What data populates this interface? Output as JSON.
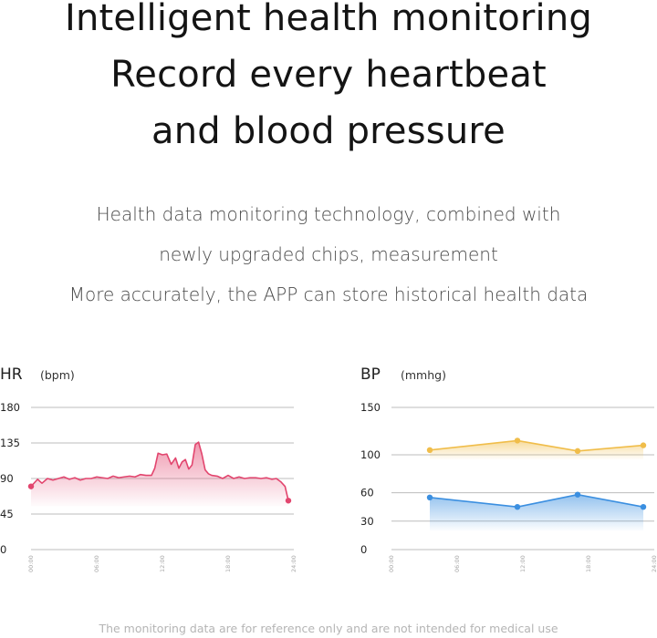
{
  "headline": {
    "line1": "Intelligent health monitoring",
    "line2": "Record every heartbeat",
    "line3": "and blood pressure"
  },
  "description": {
    "line1": "Health data monitoring technology, combined with",
    "line2": "newly upgraded chips, measurement",
    "line3": "More accurately, the APP can store historical health data"
  },
  "chart_data": [
    {
      "type": "area",
      "label": "HR",
      "unit": "(bpm)",
      "ylim": [
        0,
        180
      ],
      "yticks": [
        0,
        45,
        90,
        135,
        180
      ],
      "xticks": [
        "00:00",
        "06:00",
        "12:00",
        "18:00",
        "24:00"
      ],
      "xlim": [
        0,
        24
      ],
      "grid": true,
      "color": "#e2456e",
      "series": [
        {
          "x": [
            0,
            0.6,
            1.0,
            1.5,
            2.0,
            2.5,
            3.0,
            3.5,
            4.0,
            4.5,
            5.0,
            5.5,
            6.0,
            6.5,
            7.0,
            7.5,
            8.0,
            8.5,
            9.0,
            9.5,
            10.0,
            10.5,
            11.0,
            11.3,
            11.6,
            12.0,
            12.4,
            12.8,
            13.2,
            13.5,
            13.8,
            14.1,
            14.4,
            14.7,
            15.0,
            15.3,
            15.6,
            15.9,
            16.2,
            16.5,
            17.0,
            17.5,
            18.0,
            18.5,
            19.0,
            19.5,
            20.0,
            20.5,
            21.0,
            21.5,
            22.0,
            22.4,
            22.8,
            23.2,
            23.5
          ],
          "values": [
            80,
            89,
            84,
            90,
            88,
            90,
            92,
            89,
            91,
            88,
            90,
            90,
            92,
            91,
            90,
            93,
            91,
            92,
            93,
            92,
            95,
            94,
            94,
            103,
            122,
            120,
            121,
            108,
            116,
            103,
            111,
            114,
            102,
            107,
            133,
            136,
            121,
            101,
            96,
            94,
            93,
            90,
            94,
            90,
            92,
            90,
            91,
            91,
            90,
            91,
            89,
            90,
            86,
            80,
            62
          ]
        }
      ]
    },
    {
      "type": "area",
      "label": "BP",
      "unit": "(mmhg)",
      "ylim": [
        0,
        150
      ],
      "yticks": [
        0,
        30,
        60,
        100,
        150
      ],
      "xticks": [
        "00:00",
        "06:00",
        "12:00",
        "18:00",
        "24:00"
      ],
      "xlim": [
        0,
        24
      ],
      "grid": true,
      "series": [
        {
          "color": "#f0bd4a",
          "x": [
            3.5,
            11.5,
            17.0,
            23.0
          ],
          "values": [
            105,
            115,
            104,
            110
          ]
        },
        {
          "color": "#3b8fe0",
          "x": [
            3.5,
            11.5,
            17.0,
            23.0
          ],
          "values": [
            55,
            45,
            58,
            45
          ]
        }
      ]
    }
  ],
  "disclaimer": "The monitoring data are for reference only and are not intended for medical use"
}
